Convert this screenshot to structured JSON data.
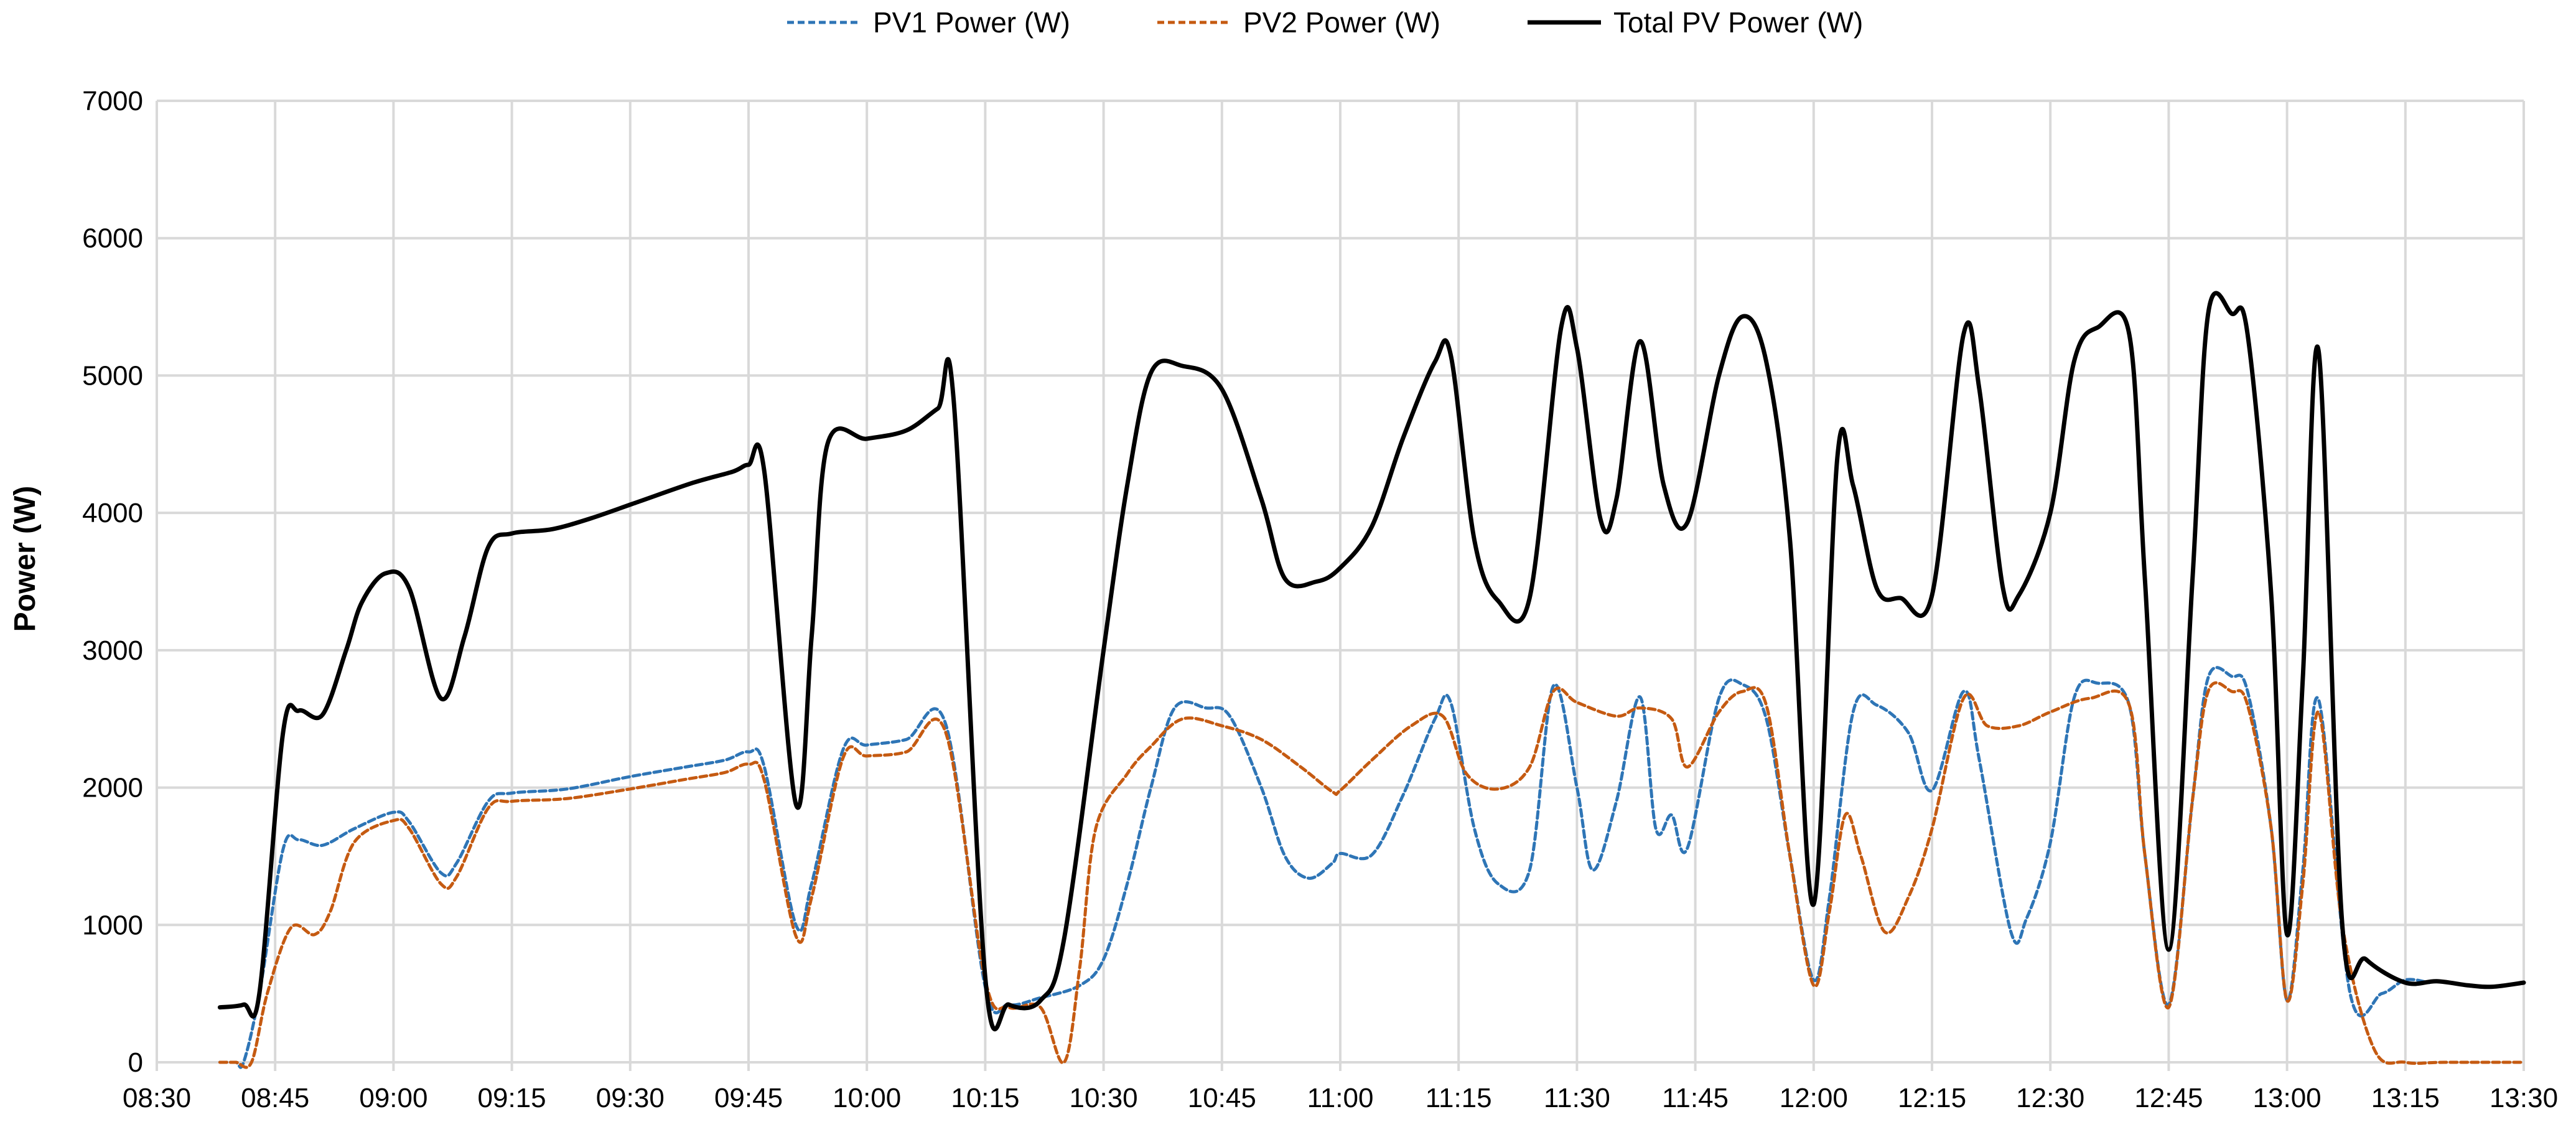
{
  "chart_data": {
    "type": "line",
    "title": "",
    "xlabel": "",
    "ylabel": "Power (W)",
    "ylim": [
      0,
      7000
    ],
    "xlim": [
      "08:30",
      "13:30"
    ],
    "y_ticks": [
      "0",
      "1000",
      "2000",
      "3000",
      "4000",
      "5000",
      "6000",
      "7000"
    ],
    "x_ticks": [
      "08:30",
      "08:45",
      "09:00",
      "09:15",
      "09:30",
      "09:45",
      "10:00",
      "10:15",
      "10:30",
      "10:45",
      "11:00",
      "11:15",
      "11:30",
      "11:45",
      "12:00",
      "12:15",
      "12:30",
      "12:45",
      "13:00",
      "13:15",
      "13:30"
    ],
    "grid": true,
    "legend_position": "top",
    "series": [
      {
        "name": "PV1 Power (W)",
        "color": "#2e75b6",
        "style": "dashed",
        "points": [
          [
            "08:38",
            0
          ],
          [
            "08:40",
            0
          ],
          [
            "08:41",
            0
          ],
          [
            "08:43",
            500
          ],
          [
            "08:46",
            1550
          ],
          [
            "08:48",
            1620
          ],
          [
            "08:51",
            1580
          ],
          [
            "08:55",
            1700
          ],
          [
            "09:00",
            1820
          ],
          [
            "09:02",
            1750
          ],
          [
            "09:06",
            1380
          ],
          [
            "09:08",
            1450
          ],
          [
            "09:12",
            1900
          ],
          [
            "09:15",
            1960
          ],
          [
            "09:22",
            1990
          ],
          [
            "09:30",
            2080
          ],
          [
            "09:37",
            2150
          ],
          [
            "09:42",
            2200
          ],
          [
            "09:45",
            2260
          ],
          [
            "09:47",
            2150
          ],
          [
            "09:51",
            1000
          ],
          [
            "09:53",
            1300
          ],
          [
            "09:57",
            2280
          ],
          [
            "10:00",
            2310
          ],
          [
            "10:05",
            2350
          ],
          [
            "10:10",
            2460
          ],
          [
            "10:15",
            550
          ],
          [
            "10:18",
            420
          ],
          [
            "10:22",
            470
          ],
          [
            "10:27",
            560
          ],
          [
            "10:30",
            750
          ],
          [
            "10:33",
            1300
          ],
          [
            "10:36",
            2000
          ],
          [
            "10:39",
            2580
          ],
          [
            "10:43",
            2580
          ],
          [
            "10:46",
            2520
          ],
          [
            "10:50",
            2000
          ],
          [
            "10:53",
            1500
          ],
          [
            "10:56",
            1340
          ],
          [
            "10:59",
            1450
          ],
          [
            "11:00",
            1520
          ],
          [
            "11:04",
            1510
          ],
          [
            "11:08",
            1950
          ],
          [
            "11:12",
            2500
          ],
          [
            "11:14",
            2620
          ],
          [
            "11:17",
            1700
          ],
          [
            "11:20",
            1300
          ],
          [
            "11:24",
            1400
          ],
          [
            "11:27",
            2740
          ],
          [
            "11:30",
            2000
          ],
          [
            "11:32",
            1400
          ],
          [
            "11:35",
            1900
          ],
          [
            "11:38",
            2660
          ],
          [
            "11:40",
            1700
          ],
          [
            "11:42",
            1800
          ],
          [
            "11:44",
            1560
          ],
          [
            "11:48",
            2650
          ],
          [
            "11:51",
            2750
          ],
          [
            "11:54",
            2500
          ],
          [
            "11:57",
            1500
          ],
          [
            "12:00",
            600
          ],
          [
            "12:02",
            1200
          ],
          [
            "12:05",
            2550
          ],
          [
            "12:08",
            2600
          ],
          [
            "12:12",
            2400
          ],
          [
            "12:15",
            1980
          ],
          [
            "12:19",
            2700
          ],
          [
            "12:21",
            2200
          ],
          [
            "12:25",
            950
          ],
          [
            "12:27",
            1050
          ],
          [
            "12:30",
            1600
          ],
          [
            "12:33",
            2650
          ],
          [
            "12:36",
            2760
          ],
          [
            "12:40",
            2600
          ],
          [
            "12:42",
            1500
          ],
          [
            "12:45",
            420
          ],
          [
            "12:48",
            1900
          ],
          [
            "12:50",
            2800
          ],
          [
            "12:53",
            2810
          ],
          [
            "12:55",
            2700
          ],
          [
            "12:58",
            1700
          ],
          [
            "13:00",
            450
          ],
          [
            "13:02",
            1400
          ],
          [
            "13:04",
            2640
          ],
          [
            "13:08",
            500
          ],
          [
            "13:12",
            500
          ],
          [
            "13:15",
            600
          ],
          [
            "13:18",
            580
          ]
        ]
      },
      {
        "name": "PV2 Power (W)",
        "color": "#c55a11",
        "style": "dashed",
        "points": [
          [
            "08:38",
            0
          ],
          [
            "08:40",
            0
          ],
          [
            "08:42",
            0
          ],
          [
            "08:44",
            500
          ],
          [
            "08:47",
            980
          ],
          [
            "08:50",
            930
          ],
          [
            "08:52",
            1100
          ],
          [
            "08:55",
            1600
          ],
          [
            "09:00",
            1760
          ],
          [
            "09:02",
            1700
          ],
          [
            "09:06",
            1300
          ],
          [
            "09:08",
            1350
          ],
          [
            "09:12",
            1850
          ],
          [
            "09:15",
            1900
          ],
          [
            "09:22",
            1920
          ],
          [
            "09:30",
            1990
          ],
          [
            "09:37",
            2060
          ],
          [
            "09:42",
            2110
          ],
          [
            "09:45",
            2170
          ],
          [
            "09:47",
            2050
          ],
          [
            "09:51",
            920
          ],
          [
            "09:53",
            1200
          ],
          [
            "09:57",
            2220
          ],
          [
            "10:00",
            2230
          ],
          [
            "10:05",
            2260
          ],
          [
            "10:10",
            2400
          ],
          [
            "10:15",
            600
          ],
          [
            "10:18",
            400
          ],
          [
            "10:22",
            400
          ],
          [
            "10:25",
            0
          ],
          [
            "10:27",
            700
          ],
          [
            "10:29",
            1700
          ],
          [
            "10:33",
            2100
          ],
          [
            "10:36",
            2300
          ],
          [
            "10:40",
            2500
          ],
          [
            "10:45",
            2450
          ],
          [
            "10:50",
            2350
          ],
          [
            "10:55",
            2150
          ],
          [
            "10:59",
            1970
          ],
          [
            "11:00",
            1980
          ],
          [
            "11:04",
            2200
          ],
          [
            "11:09",
            2450
          ],
          [
            "11:13",
            2520
          ],
          [
            "11:16",
            2100
          ],
          [
            "11:20",
            1990
          ],
          [
            "11:24",
            2150
          ],
          [
            "11:27",
            2700
          ],
          [
            "11:30",
            2620
          ],
          [
            "11:35",
            2520
          ],
          [
            "11:38",
            2580
          ],
          [
            "11:42",
            2500
          ],
          [
            "11:44",
            2150
          ],
          [
            "11:48",
            2550
          ],
          [
            "11:51",
            2700
          ],
          [
            "11:54",
            2600
          ],
          [
            "11:57",
            1500
          ],
          [
            "12:00",
            560
          ],
          [
            "12:02",
            1100
          ],
          [
            "12:04",
            1800
          ],
          [
            "12:06",
            1500
          ],
          [
            "12:09",
            950
          ],
          [
            "12:12",
            1200
          ],
          [
            "12:15",
            1700
          ],
          [
            "12:19",
            2650
          ],
          [
            "12:22",
            2450
          ],
          [
            "12:26",
            2450
          ],
          [
            "12:30",
            2550
          ],
          [
            "12:35",
            2650
          ],
          [
            "12:40",
            2600
          ],
          [
            "12:42",
            1500
          ],
          [
            "12:45",
            400
          ],
          [
            "12:48",
            1900
          ],
          [
            "12:50",
            2700
          ],
          [
            "12:53",
            2700
          ],
          [
            "12:55",
            2600
          ],
          [
            "12:58",
            1700
          ],
          [
            "13:00",
            450
          ],
          [
            "13:02",
            1300
          ],
          [
            "13:04",
            2550
          ],
          [
            "13:07",
            1000
          ],
          [
            "13:11",
            100
          ],
          [
            "13:15",
            0
          ],
          [
            "13:20",
            0
          ],
          [
            "13:30",
            0
          ]
        ]
      },
      {
        "name": "Total PV Power (W)",
        "color": "#000000",
        "style": "solid",
        "points": [
          [
            "08:38",
            400
          ],
          [
            "08:41",
            420
          ],
          [
            "08:43",
            500
          ],
          [
            "08:46",
            2400
          ],
          [
            "08:48",
            2560
          ],
          [
            "08:51",
            2530
          ],
          [
            "08:54",
            3000
          ],
          [
            "08:56",
            3350
          ],
          [
            "08:59",
            3560
          ],
          [
            "09:02",
            3450
          ],
          [
            "09:06",
            2650
          ],
          [
            "09:09",
            3100
          ],
          [
            "09:12",
            3750
          ],
          [
            "09:15",
            3850
          ],
          [
            "09:20",
            3880
          ],
          [
            "09:25",
            3960
          ],
          [
            "09:31",
            4080
          ],
          [
            "09:38",
            4220
          ],
          [
            "09:43",
            4300
          ],
          [
            "09:45",
            4350
          ],
          [
            "09:47",
            4300
          ],
          [
            "09:51",
            1880
          ],
          [
            "09:53",
            3100
          ],
          [
            "09:55",
            4500
          ],
          [
            "10:00",
            4540
          ],
          [
            "10:05",
            4600
          ],
          [
            "10:09",
            4760
          ],
          [
            "10:11",
            4820
          ],
          [
            "10:15",
            620
          ],
          [
            "10:18",
            420
          ],
          [
            "10:22",
            450
          ],
          [
            "10:25",
            900
          ],
          [
            "10:30",
            3000
          ],
          [
            "10:33",
            4200
          ],
          [
            "10:36",
            5020
          ],
          [
            "10:40",
            5070
          ],
          [
            "10:45",
            4900
          ],
          [
            "10:50",
            4100
          ],
          [
            "10:53",
            3520
          ],
          [
            "10:57",
            3500
          ],
          [
            "11:00",
            3600
          ],
          [
            "11:04",
            3900
          ],
          [
            "11:08",
            4550
          ],
          [
            "11:12",
            5100
          ],
          [
            "11:14",
            5150
          ],
          [
            "11:17",
            3800
          ],
          [
            "11:20",
            3360
          ],
          [
            "11:24",
            3380
          ],
          [
            "11:28",
            5350
          ],
          [
            "11:30",
            5200
          ],
          [
            "11:33",
            3950
          ],
          [
            "11:35",
            4100
          ],
          [
            "11:38",
            5250
          ],
          [
            "11:41",
            4200
          ],
          [
            "11:44",
            3930
          ],
          [
            "11:48",
            5000
          ],
          [
            "11:51",
            5430
          ],
          [
            "11:54",
            5100
          ],
          [
            "11:57",
            3800
          ],
          [
            "12:00",
            1150
          ],
          [
            "12:03",
            4400
          ],
          [
            "12:05",
            4200
          ],
          [
            "12:08",
            3450
          ],
          [
            "12:11",
            3380
          ],
          [
            "12:15",
            3400
          ],
          [
            "12:19",
            5300
          ],
          [
            "12:21",
            4900
          ],
          [
            "12:24",
            3450
          ],
          [
            "12:26",
            3400
          ],
          [
            "12:30",
            4000
          ],
          [
            "12:33",
            5100
          ],
          [
            "12:36",
            5350
          ],
          [
            "12:40",
            5300
          ],
          [
            "12:42",
            3500
          ],
          [
            "12:45",
            820
          ],
          [
            "12:48",
            3500
          ],
          [
            "12:50",
            5450
          ],
          [
            "12:53",
            5450
          ],
          [
            "12:55",
            5300
          ],
          [
            "12:58",
            3400
          ],
          [
            "13:00",
            930
          ],
          [
            "13:02",
            2800
          ],
          [
            "13:04",
            5180
          ],
          [
            "13:07",
            1000
          ],
          [
            "13:10",
            750
          ],
          [
            "13:15",
            580
          ],
          [
            "13:19",
            590
          ],
          [
            "13:23",
            560
          ],
          [
            "13:26",
            550
          ],
          [
            "13:30",
            580
          ]
        ]
      }
    ]
  }
}
